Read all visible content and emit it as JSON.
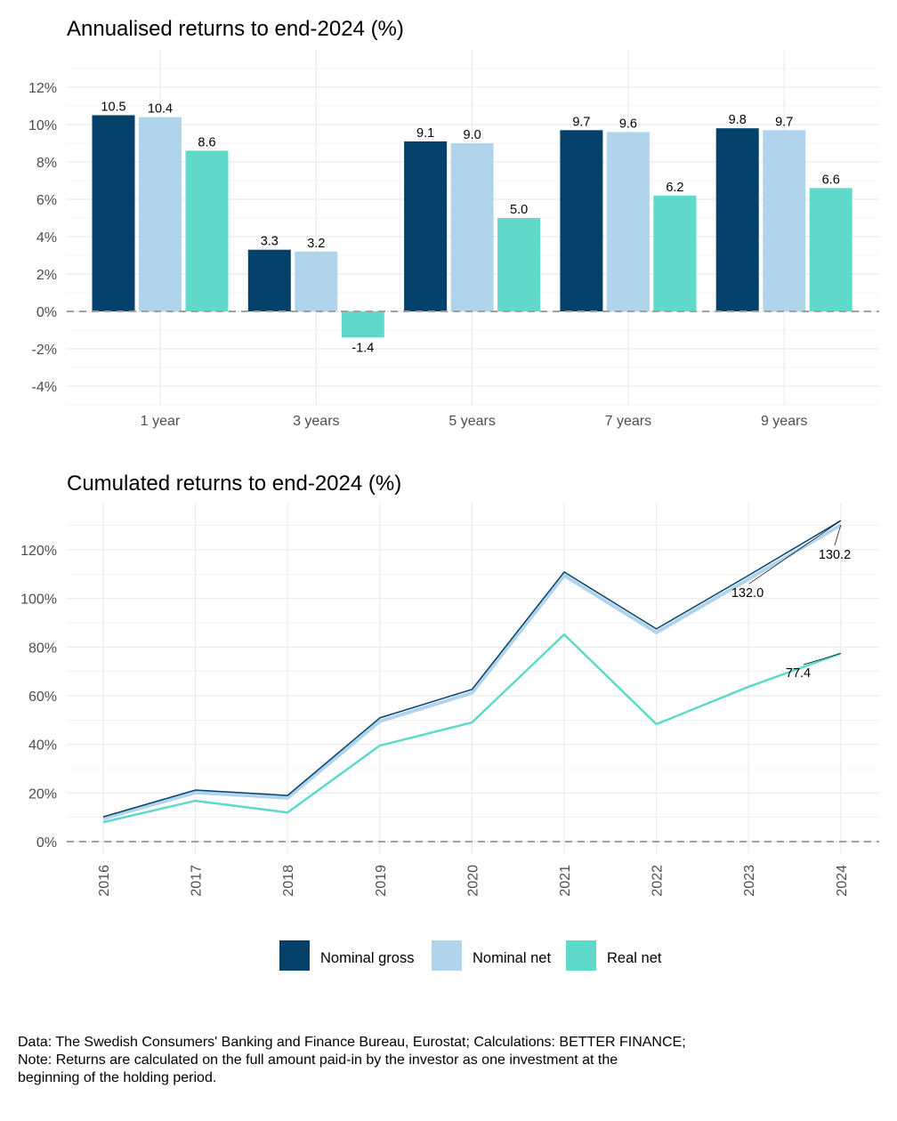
{
  "colors": {
    "Nominal gross": "#03416b",
    "Nominal net": "#b0d4ec",
    "Real net": "#5fd9c9"
  },
  "chart_data": [
    {
      "type": "bar",
      "title": "Annualised returns to end-2024 (%)",
      "categories": [
        "1 year",
        "3 years",
        "5 years",
        "7 years",
        "9 years"
      ],
      "series": [
        {
          "name": "Nominal gross",
          "values": [
            10.5,
            3.3,
            9.1,
            9.7,
            9.8
          ]
        },
        {
          "name": "Nominal net",
          "values": [
            10.4,
            3.2,
            9.0,
            9.6,
            9.7
          ]
        },
        {
          "name": "Real net",
          "values": [
            8.6,
            -1.4,
            5.0,
            6.2,
            6.6
          ]
        }
      ],
      "data_labels": [
        [
          "10.5",
          "3.3",
          "9.1",
          "9.7",
          "9.8"
        ],
        [
          "10.4",
          "3.2",
          "9.0",
          "9.6",
          "9.7"
        ],
        [
          "8.6",
          "-1.4",
          "5.0",
          "6.2",
          "6.6"
        ]
      ],
      "ylim": [
        -5,
        13
      ],
      "yticks": [
        -4,
        -2,
        0,
        2,
        4,
        6,
        8,
        10,
        12
      ],
      "ytick_labels": [
        "-4%",
        "-2%",
        "0%",
        "2%",
        "4%",
        "6%",
        "8%",
        "10%",
        "12%"
      ],
      "grid": true,
      "reference_line": 0
    },
    {
      "type": "line",
      "title": "Cumulated returns to end-2024 (%)",
      "x": [
        "2016",
        "2017",
        "2018",
        "2019",
        "2020",
        "2021",
        "2022",
        "2023",
        "2024"
      ],
      "series": [
        {
          "name": "Nominal gross",
          "values": [
            10.2,
            21.2,
            19.0,
            50.9,
            62.6,
            110.9,
            87.5,
            109.5,
            132.0
          ]
        },
        {
          "name": "Nominal net",
          "values": [
            9.5,
            20.2,
            18.0,
            49.5,
            61.2,
            109.5,
            86.0,
            108.0,
            130.2
          ]
        },
        {
          "name": "Real net",
          "values": [
            8.0,
            16.8,
            12.0,
            39.5,
            49.0,
            85.2,
            48.3,
            63.7,
            77.4
          ]
        }
      ],
      "annotations": [
        "132.0",
        "130.2",
        "77.4"
      ],
      "ylim": [
        -3,
        139
      ],
      "yticks": [
        0,
        20,
        40,
        60,
        80,
        100,
        120
      ],
      "ytick_labels": [
        "0%",
        "20%",
        "40%",
        "60%",
        "80%",
        "100%",
        "120%"
      ],
      "grid": true,
      "reference_line": 0
    }
  ],
  "legend": {
    "position": "bottom",
    "items": [
      "Nominal gross",
      "Nominal net",
      "Real net"
    ]
  },
  "footnote": [
    "Data: The Swedish Consumers' Banking and Finance Bureau, Eurostat; Calculations: BETTER FINANCE;",
    "Note: Returns are calculated on the full amount paid-in by the investor as one investment at the",
    "beginning of the holding period."
  ]
}
